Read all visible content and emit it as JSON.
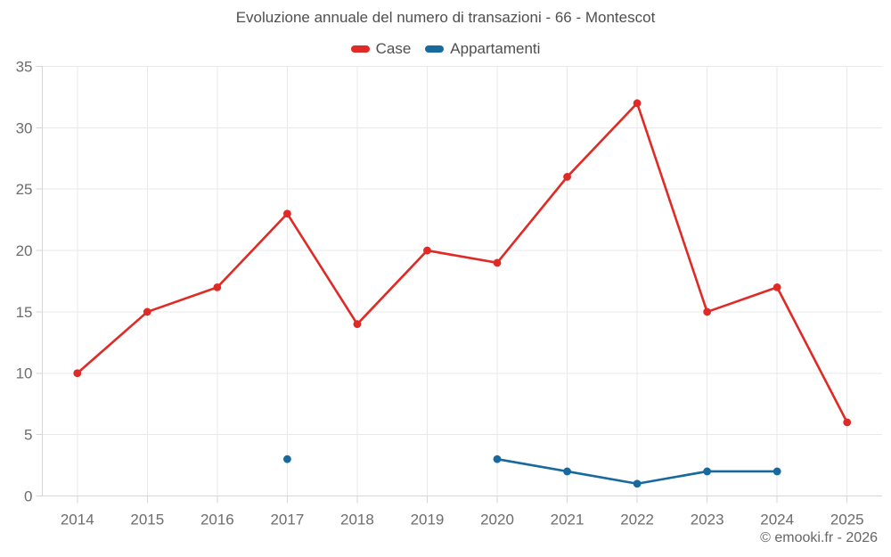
{
  "chart_data": {
    "type": "line",
    "title": "Evoluzione annuale del numero di transazioni - 66 - Montescot",
    "categories": [
      "2014",
      "2015",
      "2016",
      "2017",
      "2018",
      "2019",
      "2020",
      "2021",
      "2022",
      "2023",
      "2024",
      "2025"
    ],
    "series": [
      {
        "name": "Case",
        "color": "#df2a26",
        "values": [
          10,
          15,
          17,
          23,
          14,
          20,
          19,
          26,
          32,
          15,
          17,
          6
        ]
      },
      {
        "name": "Appartamenti",
        "color": "#17699e",
        "values": [
          null,
          null,
          null,
          3,
          null,
          null,
          3,
          2,
          1,
          2,
          2,
          null
        ]
      }
    ],
    "xlabel": "",
    "ylabel": "",
    "ylim": [
      0,
      35
    ],
    "y_ticks": [
      0,
      5,
      10,
      15,
      20,
      25,
      30,
      35
    ],
    "grid": true,
    "legend_position": "top",
    "footer": "© emooki.fr - 2026"
  },
  "colors": {
    "grid": "#e9e9e9",
    "axis": "#d6d6d6",
    "tick_text": "#6d6d6d",
    "title_text": "#4f4f4f"
  }
}
